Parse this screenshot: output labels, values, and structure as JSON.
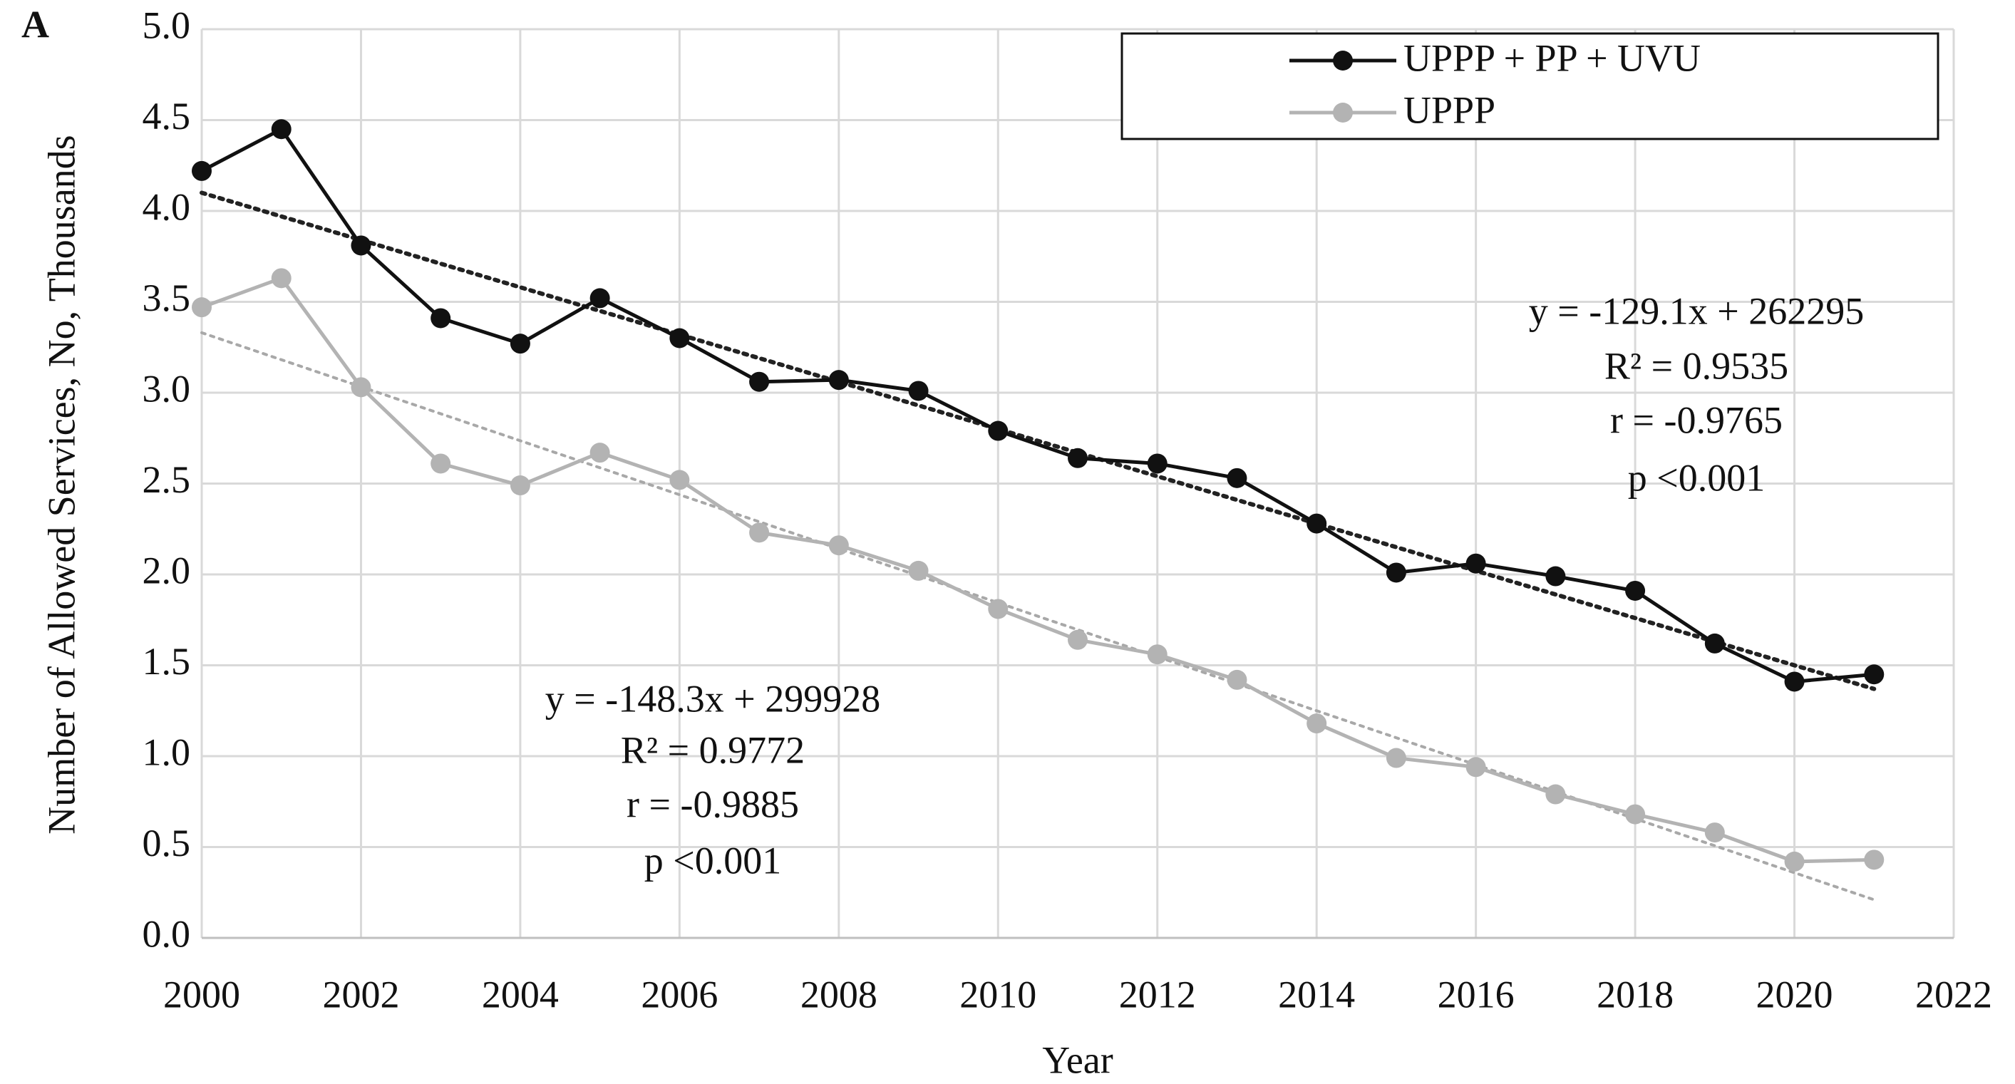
{
  "chart_data": {
    "type": "line",
    "panel_label": "A",
    "xlabel": "Year",
    "ylabel": "Number of Allowed Services, No, Thousands",
    "x": [
      2000,
      2001,
      2002,
      2003,
      2004,
      2005,
      2006,
      2007,
      2008,
      2009,
      2010,
      2011,
      2012,
      2013,
      2014,
      2015,
      2016,
      2017,
      2018,
      2019,
      2020,
      2021
    ],
    "series": [
      {
        "name": "UPPP + PP + UVU",
        "color": "#111111",
        "values": [
          4.22,
          4.45,
          3.81,
          3.41,
          3.27,
          3.52,
          3.3,
          3.06,
          3.07,
          3.01,
          2.79,
          2.64,
          2.61,
          2.53,
          2.28,
          2.01,
          2.06,
          1.99,
          1.91,
          1.62,
          1.41,
          1.45
        ],
        "trend": {
          "x": [
            2000,
            2021
          ],
          "values": [
            4.1,
            1.37
          ]
        },
        "annotation": [
          "y = -129.1x + 262295",
          "R² = 0.9535",
          "r = -0.9765",
          "p <0.001"
        ]
      },
      {
        "name": "UPPP",
        "color": "#b3b3b3",
        "values": [
          3.47,
          3.63,
          3.03,
          2.61,
          2.49,
          2.67,
          2.52,
          2.23,
          2.16,
          2.02,
          1.81,
          1.64,
          1.56,
          1.42,
          1.18,
          0.99,
          0.94,
          0.79,
          0.68,
          0.58,
          0.42,
          0.43
        ],
        "trend": {
          "x": [
            2000,
            2021
          ],
          "values": [
            3.33,
            0.21
          ]
        },
        "annotation": [
          "y = -148.3x + 299928",
          "R² = 0.9772",
          "r = -0.9885",
          "p <0.001"
        ]
      }
    ],
    "xlim": [
      2000,
      2022
    ],
    "xticks": [
      2000,
      2002,
      2004,
      2006,
      2008,
      2010,
      2012,
      2014,
      2016,
      2018,
      2020,
      2022
    ],
    "ylim": [
      0,
      5
    ],
    "yticks": [
      {
        "value": 0,
        "label": "0.0"
      },
      {
        "value": 0.5,
        "label": "0.5"
      },
      {
        "value": 1,
        "label": "1.0"
      },
      {
        "value": 1.5,
        "label": "1.5"
      },
      {
        "value": 2,
        "label": "2.0"
      },
      {
        "value": 2.5,
        "label": "2.5"
      },
      {
        "value": 3,
        "label": "3.0"
      },
      {
        "value": 3.5,
        "label": "3.5"
      },
      {
        "value": 4,
        "label": "4.0"
      },
      {
        "value": 4.5,
        "label": "4.5"
      },
      {
        "value": 5,
        "label": "5.0"
      }
    ],
    "grid": true,
    "legend": "top-right"
  }
}
